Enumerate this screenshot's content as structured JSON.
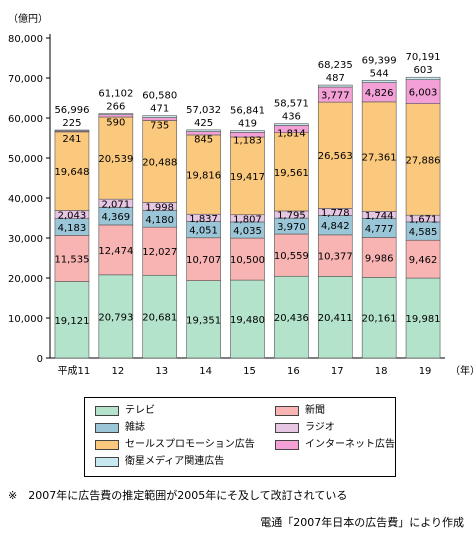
{
  "chart_data": {
    "type": "bar",
    "stacked": true,
    "unit_label": "（億円）",
    "xlabel": "（年）",
    "categories": [
      "平成11",
      "12",
      "13",
      "14",
      "15",
      "16",
      "17",
      "18",
      "19"
    ],
    "ylim": [
      0,
      80000
    ],
    "yticks": [
      0,
      10000,
      20000,
      30000,
      40000,
      50000,
      60000,
      70000,
      80000
    ],
    "ytick_labels": [
      "0",
      "10,000",
      "20,000",
      "30,000",
      "40,000",
      "50,000",
      "60,000",
      "70,000",
      "80,000"
    ],
    "grid": false,
    "series": [
      {
        "name": "テレビ",
        "color": "#b4e3cc",
        "values": [
          19121,
          20793,
          20681,
          19351,
          19480,
          20436,
          20411,
          20161,
          19981
        ],
        "labels": [
          "19,121",
          "20,793",
          "20,681",
          "19,351",
          "19,480",
          "20,436",
          "20,411",
          "20,161",
          "19,981"
        ]
      },
      {
        "name": "新聞",
        "color": "#f8b3b3",
        "values": [
          11535,
          12474,
          12027,
          10707,
          10500,
          10559,
          10377,
          9986,
          9462
        ],
        "labels": [
          "11,535",
          "12,474",
          "12,027",
          "10,707",
          "10,500",
          "10,559",
          "10,377",
          "9,986",
          "9,462"
        ]
      },
      {
        "name": "雑誌",
        "color": "#9ac6d8",
        "values": [
          4183,
          4369,
          4180,
          4051,
          4035,
          3970,
          4842,
          4777,
          4585
        ],
        "labels": [
          "4,183",
          "4,369",
          "4,180",
          "4,051",
          "4,035",
          "3,970",
          "4,842",
          "4,777",
          "4,585"
        ]
      },
      {
        "name": "ラジオ",
        "color": "#e6c6e3",
        "values": [
          2043,
          2071,
          1998,
          1837,
          1807,
          1795,
          1778,
          1744,
          1671
        ],
        "labels": [
          "2,043",
          "2,071",
          "1,998",
          "1,837",
          "1,807",
          "1,795",
          "1,778",
          "1,744",
          "1,671"
        ]
      },
      {
        "name": "セールスプロモーション広告",
        "color": "#fbc97d",
        "values": [
          19648,
          20539,
          20488,
          19816,
          19417,
          19561,
          26563,
          27361,
          27886
        ],
        "labels": [
          "19,648",
          "20,539",
          "20,488",
          "19,816",
          "19,417",
          "19,561",
          "26,563",
          "27,361",
          "27,886"
        ]
      },
      {
        "name": "インターネット広告",
        "color": "#f2a0d6",
        "values": [
          241,
          590,
          735,
          845,
          1183,
          1814,
          3777,
          4826,
          6003
        ],
        "labels": [
          "241",
          "590",
          "735",
          "845",
          "1,183",
          "1,814",
          "3,777",
          "4,826",
          "6,003"
        ]
      },
      {
        "name": "衛星メディア関連広告",
        "color": "#c9e9f0",
        "values": [
          225,
          266,
          471,
          425,
          419,
          436,
          487,
          544,
          603
        ],
        "labels": [
          "225",
          "266",
          "471",
          "425",
          "419",
          "436",
          "487",
          "544",
          "603"
        ]
      }
    ],
    "totals": [
      56996,
      61102,
      60580,
      57032,
      56841,
      58571,
      68235,
      69399,
      70191
    ],
    "total_labels": [
      "56,996",
      "61,102",
      "60,580",
      "57,032",
      "56,841",
      "58,571",
      "68,235",
      "69,399",
      "70,191"
    ],
    "legend_position": "bottom"
  },
  "note": "※　2007年に広告費の推定範囲が2005年にそ及して改訂されている",
  "source": "電通「2007年日本の広告費」により作成"
}
